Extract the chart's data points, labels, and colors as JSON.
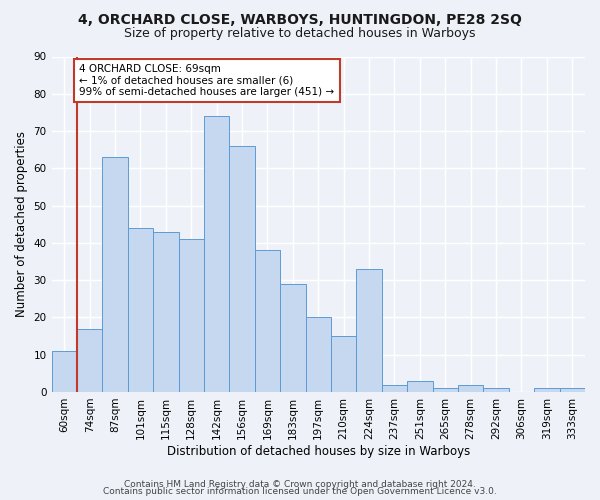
{
  "title": "4, ORCHARD CLOSE, WARBOYS, HUNTINGDON, PE28 2SQ",
  "subtitle": "Size of property relative to detached houses in Warboys",
  "xlabel": "Distribution of detached houses by size in Warboys",
  "ylabel": "Number of detached properties",
  "bins": [
    "60sqm",
    "74sqm",
    "87sqm",
    "101sqm",
    "115sqm",
    "128sqm",
    "142sqm",
    "156sqm",
    "169sqm",
    "183sqm",
    "197sqm",
    "210sqm",
    "224sqm",
    "237sqm",
    "251sqm",
    "265sqm",
    "278sqm",
    "292sqm",
    "306sqm",
    "319sqm",
    "333sqm"
  ],
  "values": [
    11,
    17,
    63,
    44,
    43,
    41,
    74,
    66,
    38,
    29,
    20,
    15,
    33,
    2,
    3,
    1,
    2,
    1,
    0,
    1,
    1
  ],
  "bar_color": "#c5d8f0",
  "bar_edge_color": "#5b9bd5",
  "subject_line_color": "#c0392b",
  "annotation_line1": "4 ORCHARD CLOSE: 69sqm",
  "annotation_line2": "← 1% of detached houses are smaller (6)",
  "annotation_line3": "99% of semi-detached houses are larger (451) →",
  "annotation_box_color": "white",
  "annotation_box_edge": "#c0392b",
  "ylim": [
    0,
    90
  ],
  "yticks": [
    0,
    10,
    20,
    30,
    40,
    50,
    60,
    70,
    80,
    90
  ],
  "footer1": "Contains HM Land Registry data © Crown copyright and database right 2024.",
  "footer2": "Contains public sector information licensed under the Open Government Licence v3.0.",
  "bg_color": "#eef2f8",
  "plot_bg_color": "#eef2f8",
  "grid_color": "#ffffff",
  "title_fontsize": 10,
  "subtitle_fontsize": 9,
  "axis_label_fontsize": 8.5,
  "tick_fontsize": 7.5,
  "footer_fontsize": 6.5
}
